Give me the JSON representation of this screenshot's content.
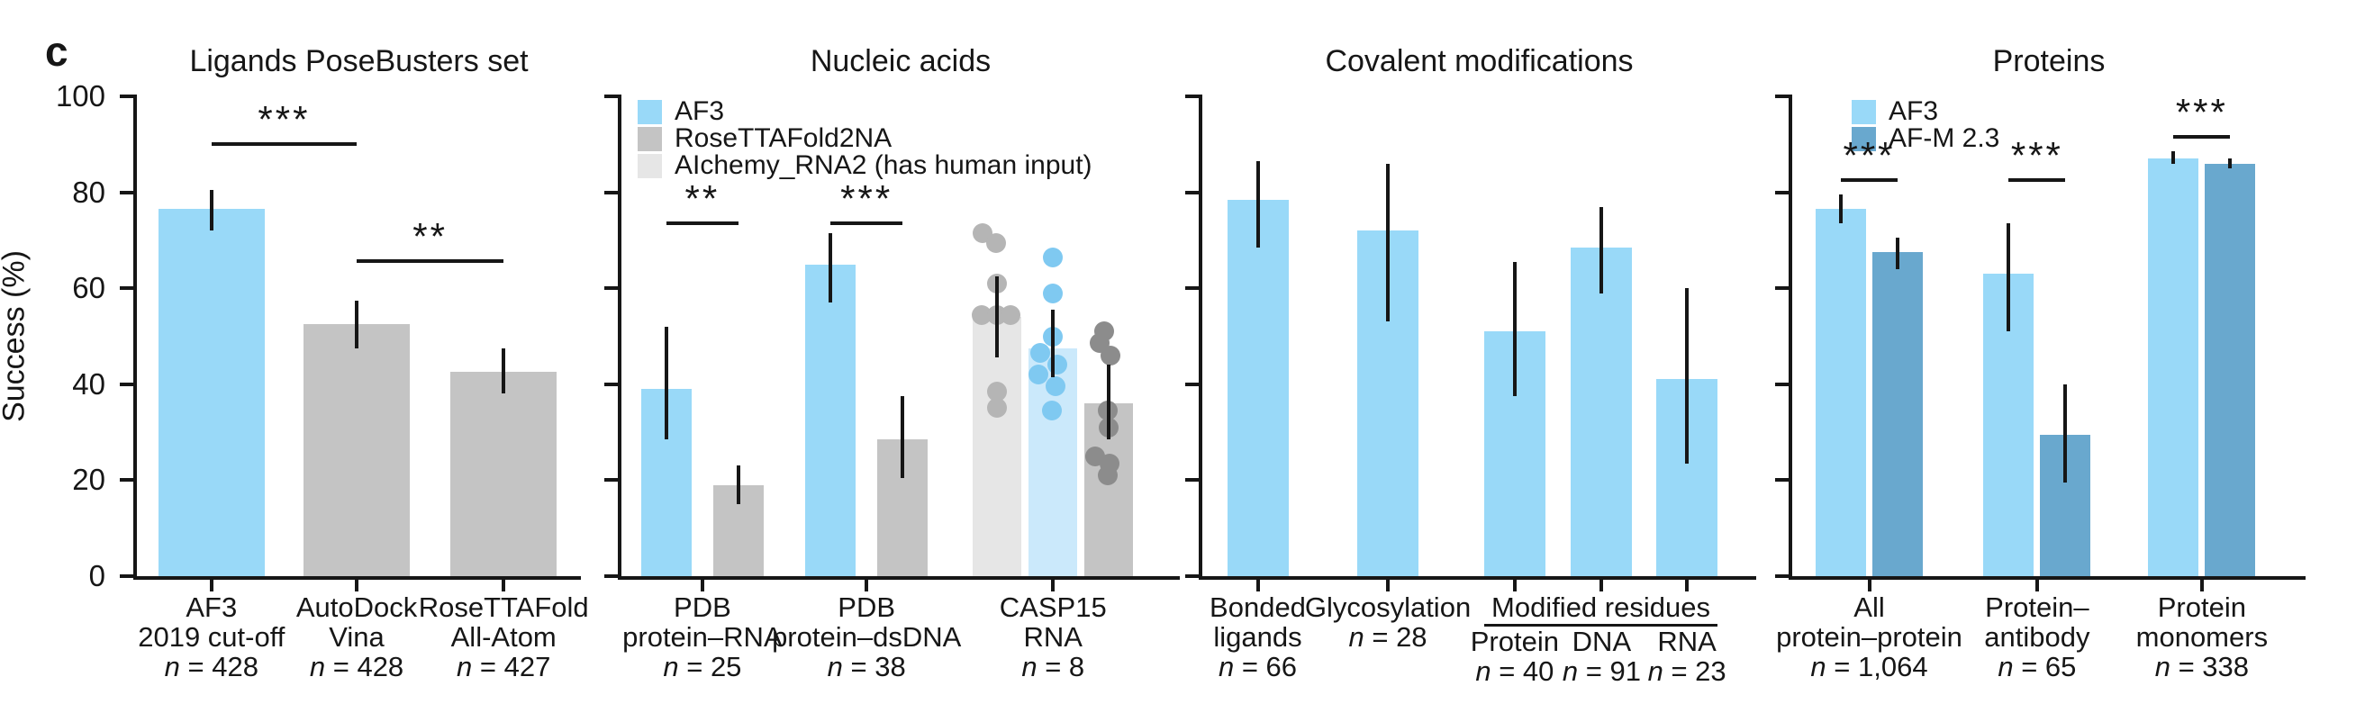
{
  "figure": {
    "label": "c",
    "ylabel": "Success (%)"
  },
  "colors": {
    "af3": "#99D9F8",
    "af3_light": "#CBE9FB",
    "gray": "#C4C4C4",
    "light_gray": "#E6E6E6",
    "af_m": "#69A8CE",
    "dot_blue": "#7FC9F1",
    "dot_gray": "#8C8C8C",
    "dot_light_gray": "#B5B5B5",
    "ink": "#161616"
  },
  "chart_data": [
    {
      "type": "bar",
      "title": "Ligands PoseBusters set",
      "ylabel": "Success (%)",
      "ylim": [
        0,
        100
      ],
      "yticks": [
        0,
        20,
        40,
        60,
        80,
        100
      ],
      "ytick_labels_visible": true,
      "grid": false,
      "groups": [
        {
          "label_lines": [
            "AF3",
            "2019 cut-off"
          ],
          "n_label": "n = 428",
          "bars": [
            {
              "series": "AF3",
              "value": 76.5,
              "err_lo": 72,
              "err_hi": 80.5,
              "color": "af3"
            }
          ]
        },
        {
          "label_lines": [
            "AutoDock",
            "Vina"
          ],
          "n_label": "n = 428",
          "bars": [
            {
              "series": "AutoDock Vina",
              "value": 52.5,
              "err_lo": 47.5,
              "err_hi": 57.5,
              "color": "gray"
            }
          ]
        },
        {
          "label_lines": [
            "RoseTTAFold",
            "All-Atom"
          ],
          "n_label": "n = 427",
          "bars": [
            {
              "series": "RoseTTAFold All-Atom",
              "value": 42.5,
              "err_lo": 38,
              "err_hi": 47.5,
              "color": "gray"
            }
          ]
        }
      ],
      "significance": [
        {
          "from": [
            0,
            0
          ],
          "to": [
            1,
            0
          ],
          "y": 90.5,
          "stars": "***"
        },
        {
          "from": [
            1,
            0
          ],
          "to": [
            2,
            0
          ],
          "y": 66,
          "stars": "**"
        }
      ]
    },
    {
      "type": "bar",
      "title": "Nucleic acids",
      "ylim": [
        0,
        100
      ],
      "yticks": [
        0,
        20,
        40,
        60,
        80,
        100
      ],
      "ytick_labels_visible": false,
      "legend": [
        {
          "label": "AF3",
          "color": "af3"
        },
        {
          "label": "RoseTTAFold2NA",
          "color": "gray"
        },
        {
          "label": "AIchemy_RNA2 (has human input)",
          "color": "light_gray"
        }
      ],
      "groups": [
        {
          "label_lines": [
            "PDB",
            "protein–RNA"
          ],
          "n_label": "n = 25",
          "bars": [
            {
              "series": "AF3",
              "value": 39,
              "err_lo": 28.5,
              "err_hi": 52,
              "color": "af3"
            },
            {
              "series": "RoseTTAFold2NA",
              "value": 19,
              "err_lo": 15,
              "err_hi": 23,
              "color": "gray"
            }
          ]
        },
        {
          "label_lines": [
            "PDB",
            "protein–dsDNA"
          ],
          "n_label": "n = 38",
          "bars": [
            {
              "series": "AF3",
              "value": 65,
              "err_lo": 57,
              "err_hi": 71.5,
              "color": "af3"
            },
            {
              "series": "RoseTTAFold2NA",
              "value": 28.5,
              "err_lo": 20.5,
              "err_hi": 37.5,
              "color": "gray"
            }
          ]
        },
        {
          "label_lines": [
            "CASP15",
            "RNA"
          ],
          "n_label": "n = 8",
          "bars": [
            {
              "series": "AIchemy_RNA2",
              "value": 54,
              "err_lo": 45.5,
              "err_hi": 62.5,
              "color": "light_gray",
              "dots": {
                "color": "dot_light_gray",
                "points": [
                  [
                    -16,
                    71.5
                  ],
                  [
                    -1,
                    69.5
                  ],
                  [
                    0,
                    61
                  ],
                  [
                    -17,
                    54.5
                  ],
                  [
                    0,
                    54.5
                  ],
                  [
                    15,
                    54.5
                  ],
                  [
                    0,
                    38.5
                  ],
                  [
                    0,
                    35
                  ]
                ]
              }
            },
            {
              "series": "AF3",
              "value": 47.5,
              "err_lo": 41.5,
              "err_hi": 55.5,
              "color": "af3_light",
              "dots": {
                "color": "dot_blue",
                "points": [
                  [
                    0,
                    66.5
                  ],
                  [
                    0,
                    59
                  ],
                  [
                    0,
                    50
                  ],
                  [
                    -14,
                    46.5
                  ],
                  [
                    5,
                    44
                  ],
                  [
                    -16,
                    42
                  ],
                  [
                    3,
                    39.5
                  ],
                  [
                    -1,
                    34.5
                  ]
                ]
              }
            },
            {
              "series": "RoseTTAFold2NA",
              "value": 36,
              "err_lo": 28.5,
              "err_hi": 44,
              "color": "gray",
              "dots": {
                "color": "dot_gray",
                "points": [
                  [
                    -5,
                    51
                  ],
                  [
                    -10,
                    48.5
                  ],
                  [
                    2,
                    46
                  ],
                  [
                    -1,
                    34.5
                  ],
                  [
                    0,
                    31
                  ],
                  [
                    -15,
                    25
                  ],
                  [
                    1,
                    23.5
                  ],
                  [
                    -1,
                    21
                  ]
                ]
              }
            }
          ]
        }
      ],
      "significance": [
        {
          "from": [
            0,
            0
          ],
          "to": [
            0,
            1
          ],
          "y": 74,
          "stars": "**"
        },
        {
          "from": [
            1,
            0
          ],
          "to": [
            1,
            1
          ],
          "y": 74,
          "stars": "***"
        }
      ]
    },
    {
      "type": "bar",
      "title": "Covalent modifications",
      "ylim": [
        0,
        100
      ],
      "yticks": [
        0,
        20,
        40,
        60,
        80,
        100
      ],
      "ytick_labels_visible": false,
      "groups": [
        {
          "label_lines": [
            "Bonded",
            "ligands"
          ],
          "n_label": "n = 66",
          "bars": [
            {
              "series": "AF3",
              "value": 78.5,
              "err_lo": 68.5,
              "err_hi": 86.5,
              "color": "af3"
            }
          ]
        },
        {
          "label_lines": [
            "Glycosylation"
          ],
          "n_label": "n = 28",
          "bars": [
            {
              "series": "AF3",
              "value": 72,
              "err_lo": 53,
              "err_hi": 86,
              "color": "af3"
            }
          ]
        },
        {
          "label_lines": [
            "Protein"
          ],
          "n_label": "n = 40",
          "bars": [
            {
              "series": "AF3",
              "value": 51,
              "err_lo": 37.5,
              "err_hi": 65.5,
              "color": "af3"
            }
          ]
        },
        {
          "label_lines": [
            "DNA"
          ],
          "n_label": "n = 91",
          "bars": [
            {
              "series": "AF3",
              "value": 68.5,
              "err_lo": 59,
              "err_hi": 77,
              "color": "af3"
            }
          ]
        },
        {
          "label_lines": [
            "RNA"
          ],
          "n_label": "n = 23",
          "bars": [
            {
              "series": "AF3",
              "value": 41,
              "err_lo": 23.5,
              "err_hi": 60,
              "color": "af3"
            }
          ]
        }
      ],
      "group_span_label": {
        "text": "Modified residues",
        "from_group": 2,
        "to_group": 4
      }
    },
    {
      "type": "bar",
      "title": "Proteins",
      "ylim": [
        0,
        100
      ],
      "yticks": [
        0,
        20,
        40,
        60,
        80,
        100
      ],
      "ytick_labels_visible": false,
      "legend": [
        {
          "label": "AF3",
          "color": "af3"
        },
        {
          "label": "AF-M 2.3",
          "color": "af_m"
        }
      ],
      "groups": [
        {
          "label_lines": [
            "All",
            "protein–protein"
          ],
          "n_label": "n = 1,064",
          "bars": [
            {
              "series": "AF3",
              "value": 76.5,
              "err_lo": 73.5,
              "err_hi": 79.5,
              "color": "af3"
            },
            {
              "series": "AF-M 2.3",
              "value": 67.5,
              "err_lo": 64,
              "err_hi": 70.5,
              "color": "af_m"
            }
          ]
        },
        {
          "label_lines": [
            "Protein–",
            "antibody"
          ],
          "n_label": "n = 65",
          "bars": [
            {
              "series": "AF3",
              "value": 63,
              "err_lo": 51,
              "err_hi": 73.5,
              "color": "af3"
            },
            {
              "series": "AF-M 2.3",
              "value": 29.5,
              "err_lo": 19.5,
              "err_hi": 40,
              "color": "af_m"
            }
          ]
        },
        {
          "label_lines": [
            "Protein",
            "monomers"
          ],
          "n_label": "n = 338",
          "bars": [
            {
              "series": "AF3",
              "value": 87,
              "err_lo": 86,
              "err_hi": 88.5,
              "color": "af3"
            },
            {
              "series": "AF-M 2.3",
              "value": 86,
              "err_lo": 85,
              "err_hi": 87,
              "color": "af_m"
            }
          ]
        }
      ],
      "significance": [
        {
          "from": [
            0,
            0
          ],
          "to": [
            0,
            1
          ],
          "y": 83,
          "stars": "***"
        },
        {
          "from": [
            1,
            0
          ],
          "to": [
            1,
            1
          ],
          "y": 83,
          "stars": "***"
        },
        {
          "from": [
            2,
            0
          ],
          "to": [
            2,
            1
          ],
          "y": 92,
          "stars": "***"
        }
      ]
    }
  ]
}
